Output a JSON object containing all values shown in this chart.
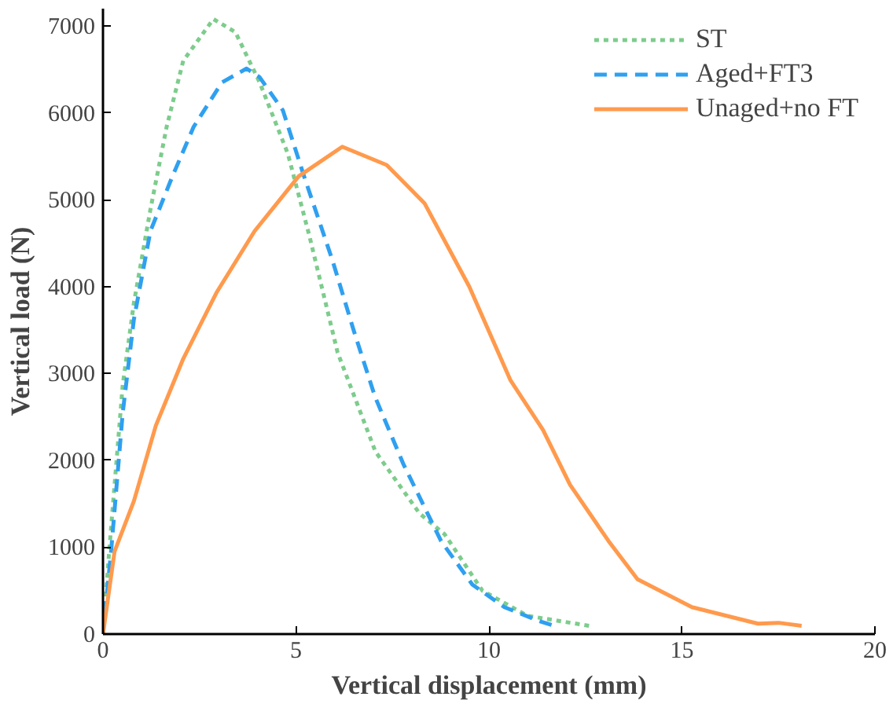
{
  "chart_data": {
    "type": "line",
    "xlabel": "Vertical displacement (mm)",
    "ylabel": "Vertical load (N)",
    "xlim": [
      0,
      20
    ],
    "ylim": [
      0,
      7200
    ],
    "xticks": [
      0,
      5,
      10,
      15,
      20
    ],
    "yticks": [
      0,
      1000,
      2000,
      3000,
      4000,
      5000,
      6000,
      7000
    ],
    "grid": false,
    "legend": "top right",
    "series": [
      {
        "name": "ST",
        "color": "#7dcc8c",
        "line_style": "dotted",
        "x": [
          0,
          0.16,
          0.51,
          0.8,
          1.23,
          1.65,
          2.08,
          2.86,
          3.43,
          4.06,
          4.79,
          5.35,
          6.08,
          7.06,
          8.2,
          8.85,
          9.83,
          11.0,
          12.6
        ],
        "values": [
          0,
          950,
          2860,
          3810,
          4890,
          5840,
          6600,
          7080,
          6930,
          6350,
          5530,
          4580,
          3240,
          2100,
          1390,
          1150,
          500,
          210,
          95
        ]
      },
      {
        "name": "Aged+FT3",
        "color": "#2fa0f0",
        "line_style": "dashed",
        "x": [
          0,
          0.21,
          0.51,
          0.8,
          1.23,
          1.8,
          2.35,
          3.08,
          3.72,
          4.06,
          4.66,
          5.21,
          5.94,
          6.5,
          7.05,
          7.78,
          8.76,
          9.57,
          10.4,
          11.3,
          11.7
        ],
        "values": [
          0,
          950,
          2540,
          3620,
          4640,
          5270,
          5840,
          6350,
          6510,
          6410,
          6030,
          5270,
          4310,
          3490,
          2730,
          1960,
          1070,
          570,
          310,
          150,
          95
        ]
      },
      {
        "name": "Unaged+no FT",
        "color": "#ff9a4d",
        "line_style": "solid",
        "x": [
          0,
          0.3,
          0.8,
          1.37,
          2.08,
          2.94,
          3.93,
          5.07,
          6.2,
          7.35,
          8.33,
          9.49,
          10.56,
          11.4,
          12.1,
          13.1,
          13.85,
          15.26,
          16.97,
          17.5,
          18.1
        ],
        "values": [
          0,
          950,
          1530,
          2400,
          3170,
          3930,
          4640,
          5270,
          5610,
          5400,
          4960,
          4000,
          2920,
          2350,
          1720,
          1070,
          630,
          310,
          120,
          130,
          95
        ]
      }
    ]
  }
}
